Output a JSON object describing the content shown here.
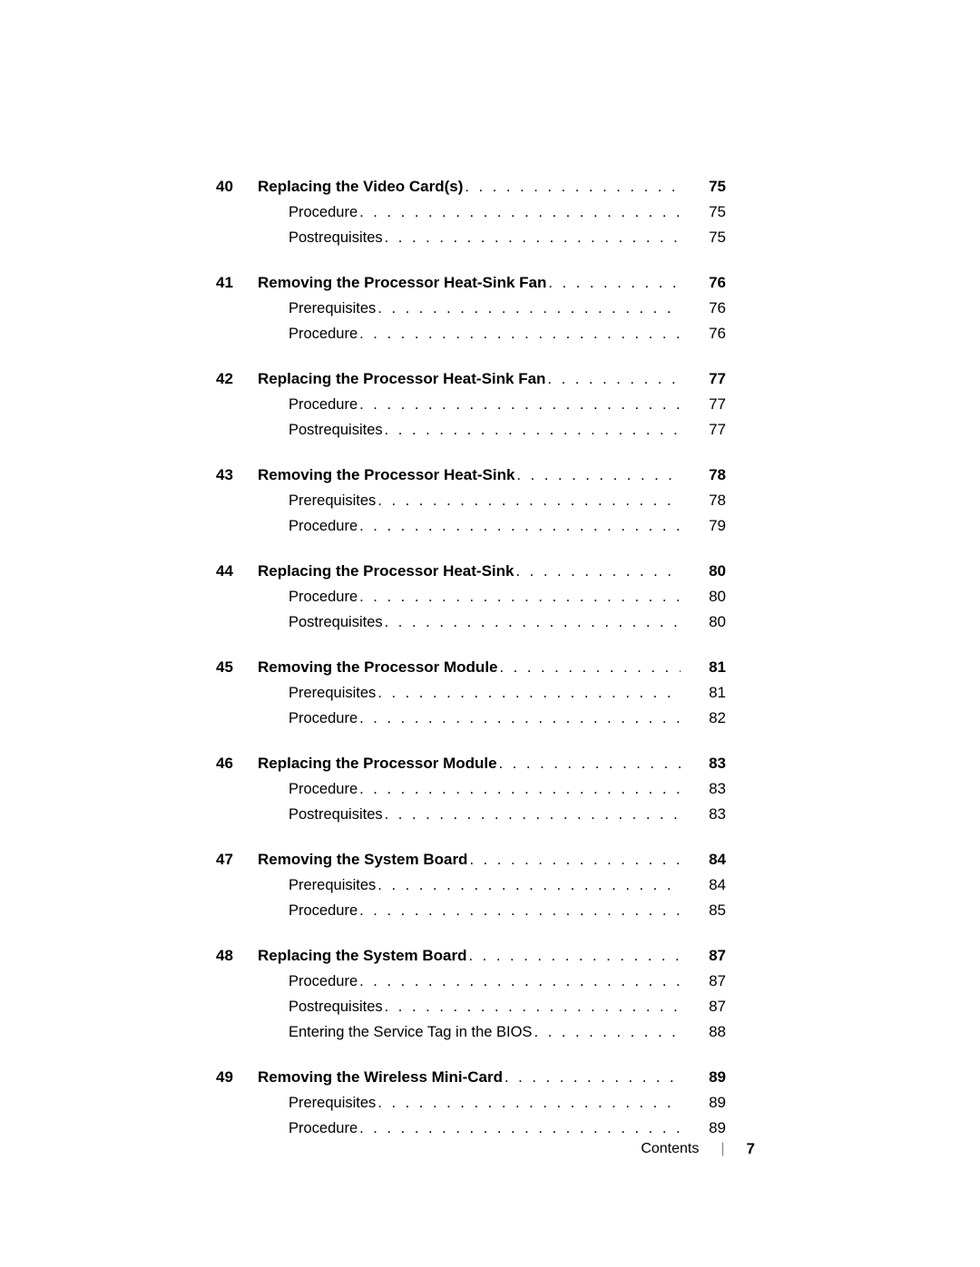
{
  "dots": ". . . . . . . . . . . . . . . . . . . . . . . . . . . . . . . . . . . . . . . . . . . . . . . . . .",
  "sections": [
    {
      "num": "40",
      "title": "Replacing the Video Card(s)",
      "page": "75",
      "subs": [
        {
          "title": "Procedure",
          "page": "75"
        },
        {
          "title": "Postrequisites",
          "page": "75"
        }
      ]
    },
    {
      "num": "41",
      "title": "Removing the Processor Heat-Sink Fan",
      "page": "76",
      "subs": [
        {
          "title": "Prerequisites",
          "page": "76"
        },
        {
          "title": "Procedure",
          "page": "76"
        }
      ]
    },
    {
      "num": "42",
      "title": "Replacing the Processor Heat-Sink Fan",
      "page": "77",
      "subs": [
        {
          "title": "Procedure",
          "page": "77"
        },
        {
          "title": "Postrequisites",
          "page": "77"
        }
      ]
    },
    {
      "num": "43",
      "title": "Removing the Processor Heat-Sink",
      "page": "78",
      "subs": [
        {
          "title": "Prerequisites",
          "page": "78"
        },
        {
          "title": "Procedure",
          "page": "79"
        }
      ]
    },
    {
      "num": "44",
      "title": "Replacing the Processor Heat-Sink",
      "page": "80",
      "subs": [
        {
          "title": "Procedure",
          "page": "80"
        },
        {
          "title": "Postrequisites",
          "page": "80"
        }
      ]
    },
    {
      "num": "45",
      "title": "Removing the Processor Module",
      "page": "81",
      "subs": [
        {
          "title": "Prerequisites",
          "page": "81"
        },
        {
          "title": "Procedure",
          "page": "82"
        }
      ]
    },
    {
      "num": "46",
      "title": "Replacing the Processor Module",
      "page": "83",
      "subs": [
        {
          "title": "Procedure",
          "page": "83"
        },
        {
          "title": "Postrequisites",
          "page": "83"
        }
      ]
    },
    {
      "num": "47",
      "title": "Removing the System Board",
      "page": "84",
      "subs": [
        {
          "title": "Prerequisites",
          "page": "84"
        },
        {
          "title": "Procedure",
          "page": "85"
        }
      ]
    },
    {
      "num": "48",
      "title": "Replacing the System Board",
      "page": "87",
      "subs": [
        {
          "title": "Procedure",
          "page": "87"
        },
        {
          "title": "Postrequisites",
          "page": "87"
        },
        {
          "title": "Entering the Service Tag in the BIOS",
          "page": "88"
        }
      ]
    },
    {
      "num": "49",
      "title": "Removing the Wireless Mini-Card",
      "page": "89",
      "subs": [
        {
          "title": "Prerequisites",
          "page": "89"
        },
        {
          "title": "Procedure",
          "page": "89"
        }
      ]
    }
  ],
  "footer": {
    "label": "Contents",
    "divider": "|",
    "page": "7"
  }
}
